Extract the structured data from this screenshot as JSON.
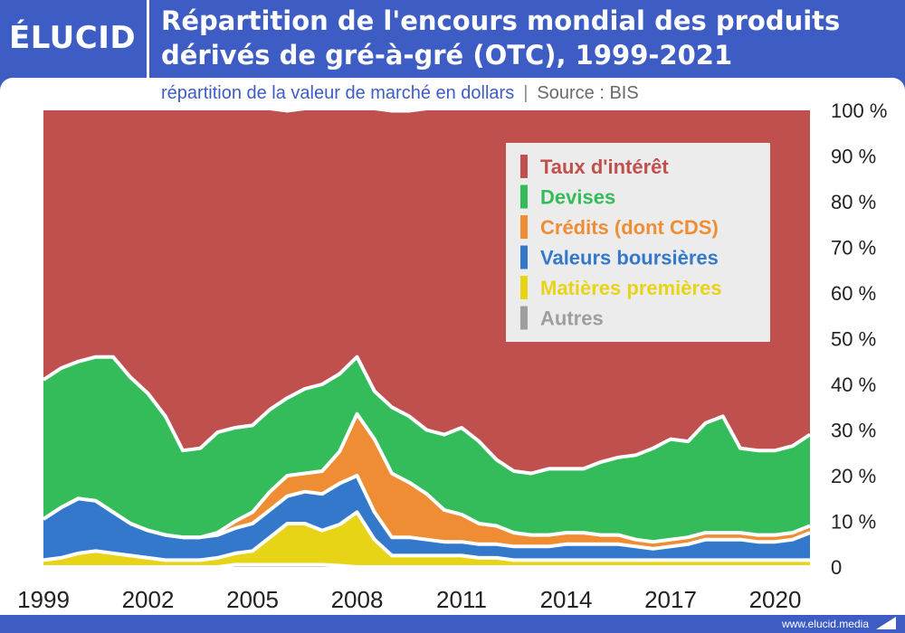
{
  "logo": "ÉLUCID",
  "title": "Répartition de l'encours mondial des produits dérivés de gré-à-gré (OTC), 1999-2021",
  "subtitle": {
    "text": "répartition de la valeur de marché en dollars",
    "separator": "|",
    "source": "Source : BIS"
  },
  "footer": "www.elucid.media",
  "chart_data": {
    "type": "area",
    "stacked": true,
    "normalized": true,
    "x": [
      1999,
      1999.5,
      2000,
      2000.5,
      2001,
      2001.5,
      2002,
      2002.5,
      2003,
      2003.5,
      2004,
      2004.5,
      2005,
      2005.5,
      2006,
      2006.5,
      2007,
      2007.5,
      2008,
      2008.5,
      2009,
      2009.5,
      2010,
      2010.5,
      2011,
      2011.5,
      2012,
      2012.5,
      2013,
      2013.5,
      2014,
      2014.5,
      2015,
      2015.5,
      2016,
      2016.5,
      2017,
      2017.5,
      2018,
      2018.5,
      2019,
      2019.5,
      2020,
      2020.5,
      2021
    ],
    "series": [
      {
        "name": "Autres",
        "color": "#9e9e9e",
        "values": [
          0,
          0,
          0,
          0,
          0,
          0,
          0,
          0,
          0,
          0,
          0,
          0.5,
          0.5,
          0.5,
          0.5,
          0.5,
          0.5,
          0.3,
          0,
          0,
          0,
          0,
          0,
          0,
          0,
          0,
          0,
          0,
          0,
          0,
          0,
          0,
          0,
          0,
          0,
          0,
          0,
          0,
          0,
          0,
          0,
          0,
          0,
          0,
          0
        ]
      },
      {
        "name": "Matières premières",
        "color": "#e8d417",
        "values": [
          1.5,
          2,
          3,
          3.5,
          3,
          2.5,
          2,
          1.5,
          1.5,
          1.5,
          2,
          2.5,
          3,
          6,
          9,
          9,
          7.5,
          9,
          12,
          6,
          2.5,
          2.5,
          2.5,
          2.5,
          2.5,
          2,
          2,
          1.5,
          1.5,
          1.5,
          1.5,
          1.5,
          1.5,
          1.5,
          1.5,
          1.5,
          1.5,
          1.5,
          1.5,
          1.5,
          1.5,
          1.5,
          1.5,
          1.5,
          1.5
        ]
      },
      {
        "name": "Valeurs boursières",
        "color": "#3478cc",
        "values": [
          9,
          11,
          12,
          11,
          9,
          7,
          6,
          5.5,
          5,
          5,
          5,
          5.5,
          6,
          6,
          6,
          7,
          8,
          9,
          8,
          6,
          4,
          4,
          3.5,
          3,
          3,
          3,
          3,
          3,
          3,
          3,
          3.5,
          3.5,
          3.5,
          3.5,
          3,
          2.5,
          3,
          3.5,
          4.5,
          4.5,
          4.5,
          4,
          4,
          4.5,
          6
        ]
      },
      {
        "name": "Crédits (dont CDS)",
        "color": "#ef8d35",
        "values": [
          0,
          0,
          0,
          0,
          0,
          0,
          0,
          0,
          0,
          0,
          0.5,
          1.5,
          2.5,
          4,
          4.5,
          4,
          5,
          7,
          13.5,
          16,
          14,
          12,
          10,
          7,
          6,
          4.5,
          4,
          3,
          2.5,
          2.5,
          2.5,
          2.5,
          2,
          2,
          1.5,
          1.5,
          1.5,
          1.5,
          1.5,
          1.5,
          1.5,
          1.5,
          1.5,
          1.5,
          1.5
        ]
      },
      {
        "name": "Devises",
        "color": "#34bc5b",
        "values": [
          30.5,
          30.5,
          30,
          31.5,
          34,
          32,
          30,
          26,
          19,
          19.5,
          22,
          20.5,
          19,
          18,
          17,
          18.5,
          19,
          17,
          12.5,
          10.5,
          14.5,
          14.5,
          14,
          16.5,
          19,
          18,
          14.5,
          13.5,
          13.5,
          14.5,
          14,
          14,
          16,
          17,
          18.5,
          20.5,
          22,
          21,
          24,
          25.5,
          18.5,
          18.5,
          18.5,
          19,
          20
        ]
      },
      {
        "name": "Taux d'intérêt",
        "color": "#c0504d",
        "values": [
          59,
          56.5,
          55,
          54,
          54,
          58.5,
          62,
          67,
          74.5,
          74,
          70.5,
          69.5,
          69,
          65.5,
          62.5,
          61,
          60,
          57.7,
          54,
          61.5,
          64.5,
          66.5,
          70,
          71,
          69.5,
          72.5,
          76.5,
          79,
          79.5,
          78.5,
          78.5,
          78.5,
          77,
          76,
          75.5,
          74,
          72,
          72.5,
          68.5,
          67,
          74,
          74.5,
          74.5,
          73.5,
          71
        ]
      }
    ],
    "legend": [
      "Taux d'intérêt",
      "Devises",
      "Crédits (dont CDS)",
      "Valeurs boursières",
      "Matières premières",
      "Autres"
    ],
    "xticks": [
      1999,
      2002,
      2005,
      2008,
      2011,
      2014,
      2017,
      2020
    ],
    "ylim": [
      0,
      100
    ],
    "yticks": [
      0,
      10,
      20,
      30,
      40,
      50,
      60,
      70,
      80,
      90,
      100
    ],
    "ytick_labels": [
      "0",
      "10 %",
      "20 %",
      "30 %",
      "40 %",
      "50 %",
      "60 %",
      "70 %",
      "80 %",
      "90 %",
      "100 %"
    ],
    "legend_position": "top-right",
    "y_axis_side": "right",
    "grid": false
  }
}
